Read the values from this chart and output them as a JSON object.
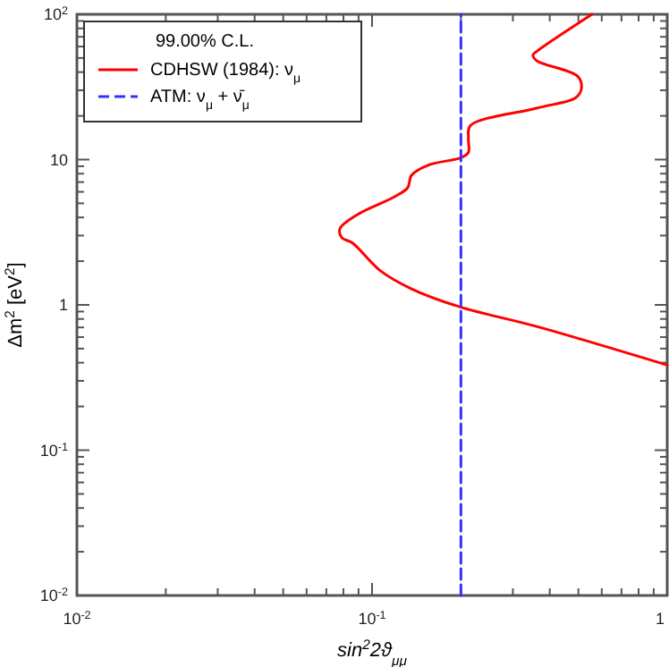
{
  "chart_data": {
    "type": "line",
    "xlabel": "sin$^{2}$2ϑ$_{μμ}$",
    "ylabel": "Δm$^{2}$  [eV$^{2}$]",
    "legend_title": "99.00% C.L.",
    "legend": "top left",
    "log": "xy",
    "grid": false,
    "xlim": [
      0.01,
      1
    ],
    "ylim": [
      0.01,
      100
    ],
    "xticks": [
      {
        "value": 0.01,
        "label": "10$^{-2}$"
      },
      {
        "value": 0.02,
        "label": null
      },
      {
        "value": 0.03,
        "label": null
      },
      {
        "value": 0.04,
        "label": null
      },
      {
        "value": 0.05,
        "label": null
      },
      {
        "value": 0.06,
        "label": null
      },
      {
        "value": 0.07,
        "label": null
      },
      {
        "value": 0.08,
        "label": null
      },
      {
        "value": 0.09,
        "label": null
      },
      {
        "value": 0.1,
        "label": "10$^{-1}$"
      },
      {
        "value": 0.2,
        "label": null
      },
      {
        "value": 0.3,
        "label": null
      },
      {
        "value": 0.4,
        "label": null
      },
      {
        "value": 0.5,
        "label": null
      },
      {
        "value": 0.6,
        "label": null
      },
      {
        "value": 0.7,
        "label": null
      },
      {
        "value": 0.8,
        "label": null
      },
      {
        "value": 0.9,
        "label": null
      },
      1
    ],
    "yticks": [
      {
        "value": 0.01,
        "label": "10$^{-2}$"
      },
      {
        "value": 0.02,
        "label": null
      },
      {
        "value": 0.03,
        "label": null
      },
      {
        "value": 0.04,
        "label": null
      },
      {
        "value": 0.05,
        "label": null
      },
      {
        "value": 0.06,
        "label": null
      },
      {
        "value": 0.07,
        "label": null
      },
      {
        "value": 0.08,
        "label": null
      },
      {
        "value": 0.09,
        "label": null
      },
      {
        "value": 0.1,
        "label": "10$^{-1}$"
      },
      {
        "value": 0.2,
        "label": null
      },
      {
        "value": 0.3,
        "label": null
      },
      {
        "value": 0.4,
        "label": null
      },
      {
        "value": 0.5,
        "label": null
      },
      {
        "value": 0.6,
        "label": null
      },
      {
        "value": 0.7,
        "label": null
      },
      {
        "value": 0.8,
        "label": null
      },
      {
        "value": 0.9,
        "label": null
      },
      1,
      {
        "value": 2,
        "label": null
      },
      {
        "value": 3,
        "label": null
      },
      {
        "value": 4,
        "label": null
      },
      {
        "value": 5,
        "label": null
      },
      {
        "value": 6,
        "label": null
      },
      {
        "value": 7,
        "label": null
      },
      {
        "value": 8,
        "label": null
      },
      {
        "value": 9,
        "label": null
      },
      10,
      {
        "value": 20,
        "label": null
      },
      {
        "value": 30,
        "label": null
      },
      {
        "value": 40,
        "label": null
      },
      {
        "value": 50,
        "label": null
      },
      {
        "value": 60,
        "label": null
      },
      {
        "value": 70,
        "label": null
      },
      {
        "value": 80,
        "label": null
      },
      {
        "value": 90,
        "label": null
      },
      {
        "value": 100,
        "label": "10$^{2}$"
      }
    ],
    "series": [
      {
        "name": "CDHSW (1984): ν$_{μ}$",
        "color": "#ff0000",
        "line_style": "solid",
        "x": [
          0.556,
          0.361,
          0.351,
          0.361,
          0.498,
          0.512,
          0.49,
          0.361,
          0.215,
          0.212,
          0.212,
          0.2,
          0.156,
          0.136,
          0.132,
          0.118,
          0.0895,
          0.0778,
          0.079,
          0.0858,
          0.107,
          0.136,
          0.198,
          0.361,
          1
        ],
        "values": [
          100,
          55.5,
          52.5,
          48,
          37.4,
          30.8,
          26.7,
          22.6,
          17.1,
          14,
          11.2,
          10.3,
          9.2,
          7.8,
          6.4,
          5.5,
          4.2,
          3.34,
          2.9,
          2.67,
          1.71,
          1.29,
          0.97,
          0.71,
          0.385
        ]
      },
      {
        "name": "ATM: ν$_{μ}$ + ν̄$_{μ}$",
        "color": "#3333ff",
        "line_style": "dashed",
        "x": [
          0.2,
          0.2
        ],
        "values": [
          0.01,
          100
        ]
      }
    ]
  }
}
